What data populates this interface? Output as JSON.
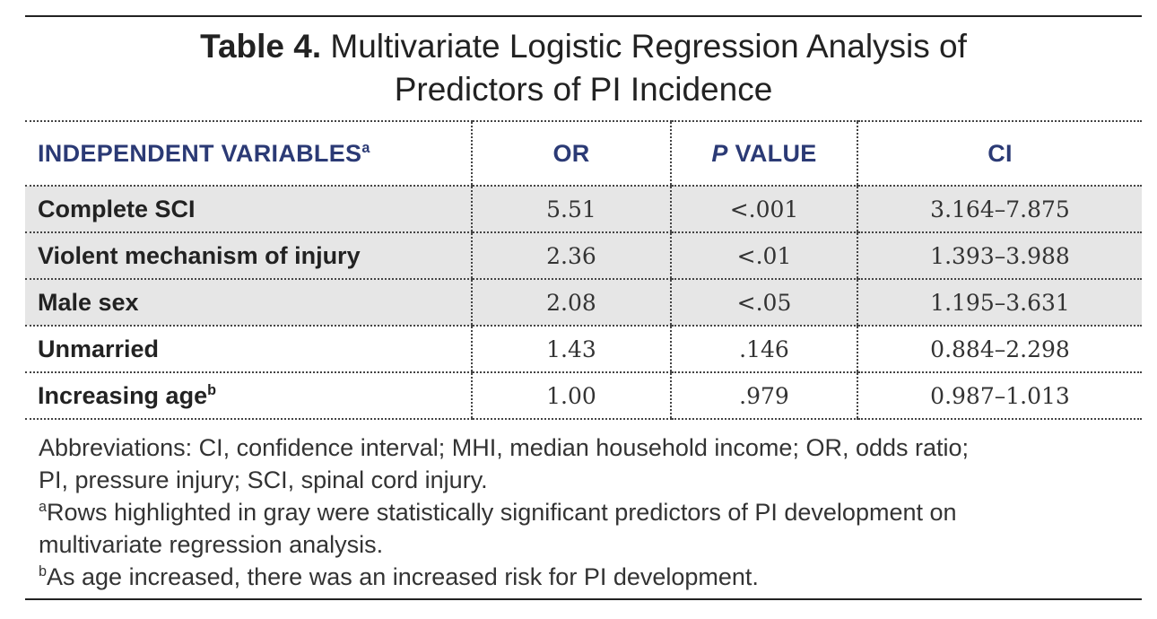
{
  "title": {
    "label": "Table 4.",
    "line1": "Multivariate Logistic Regression Analysis of",
    "line2": "Predictors of PI Incidence"
  },
  "table": {
    "headers": {
      "variable": "INDEPENDENT VARIABLES",
      "variable_sup": "a",
      "or": "OR",
      "p_italic": "P",
      "p_rest": "VALUE",
      "ci": "CI"
    },
    "rows": [
      {
        "variable": "Complete SCI",
        "sup": "",
        "or": "5.51",
        "p": "<.001",
        "ci": "3.164–7.875",
        "highlight": true
      },
      {
        "variable": "Violent mechanism of injury",
        "sup": "",
        "or": "2.36",
        "p": "<.01",
        "ci": "1.393–3.988",
        "highlight": true
      },
      {
        "variable": "Male sex",
        "sup": "",
        "or": "2.08",
        "p": "<.05",
        "ci": "1.195–3.631",
        "highlight": true
      },
      {
        "variable": "Unmarried",
        "sup": "",
        "or": "1.43",
        "p": ".146",
        "ci": "0.884–2.298",
        "highlight": false
      },
      {
        "variable": "Increasing age",
        "sup": "b",
        "or": "1.00",
        "p": ".979",
        "ci": "0.987–1.013",
        "highlight": false
      }
    ]
  },
  "footnotes": {
    "abbreviations_line1": "Abbreviations: CI, confidence interval; MHI, median household income; OR, odds ratio;",
    "abbreviations_line2": "PI, pressure injury; SCI, spinal cord injury.",
    "note_a_marker": "a",
    "note_a_line1": "Rows highlighted in gray were statistically significant predictors of PI development on",
    "note_a_line2": "multivariate regression analysis.",
    "note_b_marker": "b",
    "note_b": "As age increased, there was an increased risk for PI development."
  },
  "colors": {
    "header_text": "#2b3a75",
    "highlight_row": "#e6e6e6",
    "rule": "#222222"
  }
}
